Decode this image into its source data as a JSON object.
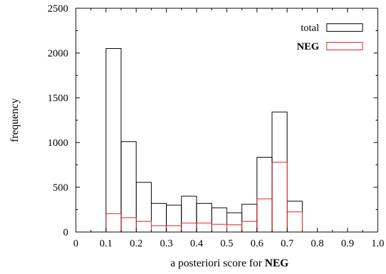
{
  "chart_data": {
    "type": "bar",
    "title": "",
    "xlabel": "a posteriori score for",
    "xlabel_bold": "NEG",
    "ylabel": "frequency",
    "xlim": [
      0,
      1.0
    ],
    "ylim": [
      0,
      2500
    ],
    "bin_width": 0.05,
    "x_ticks": [
      "0",
      "0.1",
      "0.2",
      "0.3",
      "0.4",
      "0.5",
      "0.6",
      "0.7",
      "0.8",
      "0.9",
      "1.0"
    ],
    "x_tick_values": [
      0,
      0.1,
      0.2,
      0.3,
      0.4,
      0.5,
      0.6,
      0.7,
      0.8,
      0.9,
      1.0
    ],
    "y_ticks": [
      "0",
      "500",
      "1000",
      "1500",
      "2000",
      "2500"
    ],
    "y_tick_values": [
      0,
      500,
      1000,
      1500,
      2000,
      2500
    ],
    "bin_starts": [
      0.1,
      0.15,
      0.2,
      0.25,
      0.3,
      0.35,
      0.4,
      0.45,
      0.5,
      0.55,
      0.6,
      0.65,
      0.7
    ],
    "series": [
      {
        "name": "total",
        "color": "#000000",
        "values": [
          2050,
          1010,
          555,
          320,
          300,
          400,
          320,
          270,
          215,
          310,
          835,
          1340,
          345
        ]
      },
      {
        "name": "NEG",
        "color": "#e02020",
        "values": [
          205,
          160,
          120,
          70,
          70,
          100,
          100,
          85,
          80,
          120,
          370,
          780,
          225
        ]
      }
    ],
    "legend_position": "top-right",
    "grid": false
  }
}
